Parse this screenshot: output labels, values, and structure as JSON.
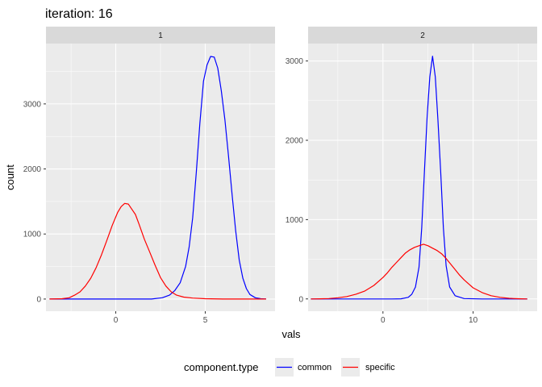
{
  "title": "iteration: 16",
  "chart_data": {
    "type": "line",
    "title": "iteration: 16",
    "xlabel": "vals",
    "ylabel": "count",
    "grid": true,
    "legend_placement": "bottom",
    "legend": {
      "title": "component.type",
      "entries": [
        {
          "name": "common",
          "color": "#0000ff"
        },
        {
          "name": "specific",
          "color": "#ff0000"
        }
      ]
    },
    "panels": [
      {
        "strip_label": "1",
        "xlim": [
          -3.9,
          8.9
        ],
        "ylim": [
          -187,
          3928
        ],
        "x_ticks": [
          0,
          5
        ],
        "x_tick_labels": [
          "0",
          "5"
        ],
        "y_ticks": [
          0,
          1000,
          2000,
          3000
        ],
        "y_tick_labels": [
          "0",
          "1000",
          "2000",
          "3000"
        ],
        "series": [
          {
            "name": "common",
            "color": "#0000ff",
            "x": [
              -3.7,
              -3.0,
              -2.0,
              -1.0,
              0.0,
              1.0,
              2.0,
              2.6,
              3.0,
              3.3,
              3.6,
              3.9,
              4.1,
              4.3,
              4.5,
              4.7,
              4.9,
              5.1,
              5.3,
              5.5,
              5.7,
              5.9,
              6.1,
              6.3,
              6.5,
              6.7,
              6.9,
              7.1,
              7.3,
              7.5,
              7.8,
              8.1,
              8.4
            ],
            "y": [
              0,
              0,
              0,
              0,
              0,
              0,
              0,
              20,
              60,
              130,
              250,
              500,
              800,
              1250,
              1950,
              2700,
              3350,
              3600,
              3730,
              3720,
              3550,
              3200,
              2750,
              2200,
              1600,
              1050,
              600,
              320,
              160,
              70,
              20,
              5,
              0
            ]
          },
          {
            "name": "specific",
            "color": "#ff0000",
            "x": [
              -3.7,
              -3.0,
              -2.6,
              -2.3,
              -2.0,
              -1.7,
              -1.4,
              -1.1,
              -0.8,
              -0.5,
              -0.2,
              0.1,
              0.3,
              0.5,
              0.7,
              0.9,
              1.1,
              1.3,
              1.6,
              1.9,
              2.2,
              2.5,
              2.8,
              3.1,
              3.4,
              3.8,
              4.3,
              5.0,
              6.0,
              7.0,
              8.0,
              8.4
            ],
            "y": [
              0,
              5,
              20,
              60,
              110,
              200,
              320,
              480,
              680,
              900,
              1130,
              1330,
              1420,
              1470,
              1460,
              1380,
              1300,
              1150,
              920,
              720,
              520,
              330,
              200,
              110,
              60,
              30,
              15,
              5,
              0,
              0,
              0,
              0
            ]
          }
        ]
      },
      {
        "strip_label": "2",
        "xlim": [
          -8.3,
          17.1
        ],
        "ylim": [
          -155,
          3220
        ],
        "x_ticks": [
          0,
          10
        ],
        "x_tick_labels": [
          "0",
          "10"
        ],
        "y_ticks": [
          0,
          1000,
          2000,
          3000
        ],
        "y_tick_labels": [
          "0",
          "1000",
          "2000",
          "3000"
        ],
        "series": [
          {
            "name": "common",
            "color": "#0000ff",
            "x": [
              -8.0,
              -5.0,
              -2.0,
              1.0,
              2.0,
              2.8,
              3.2,
              3.6,
              4.0,
              4.3,
              4.6,
              4.9,
              5.2,
              5.5,
              5.8,
              6.1,
              6.4,
              6.7,
              7.0,
              7.4,
              8.0,
              9.0,
              11.0,
              14.0,
              16.0
            ],
            "y": [
              0,
              0,
              0,
              0,
              2,
              20,
              60,
              150,
              400,
              900,
              1600,
              2300,
              2800,
              3060,
              2800,
              2250,
              1600,
              900,
              420,
              150,
              40,
              5,
              0,
              0,
              0
            ]
          },
          {
            "name": "specific",
            "color": "#ff0000",
            "x": [
              -8.0,
              -7.0,
              -6.0,
              -5.0,
              -4.0,
              -3.0,
              -2.0,
              -1.0,
              0.0,
              0.5,
              1.0,
              1.5,
              2.0,
              2.5,
              3.0,
              3.5,
              4.0,
              4.5,
              5.0,
              5.5,
              6.0,
              6.5,
              7.0,
              7.5,
              8.0,
              8.5,
              9.0,
              9.5,
              10.0,
              11.0,
              12.0,
              13.0,
              14.0,
              15.0,
              16.0
            ],
            "y": [
              0,
              2,
              5,
              15,
              30,
              60,
              100,
              170,
              270,
              330,
              400,
              460,
              520,
              580,
              620,
              650,
              670,
              690,
              670,
              640,
              610,
              570,
              510,
              440,
              370,
              300,
              240,
              190,
              140,
              80,
              40,
              20,
              8,
              3,
              0
            ]
          }
        ]
      }
    ]
  }
}
